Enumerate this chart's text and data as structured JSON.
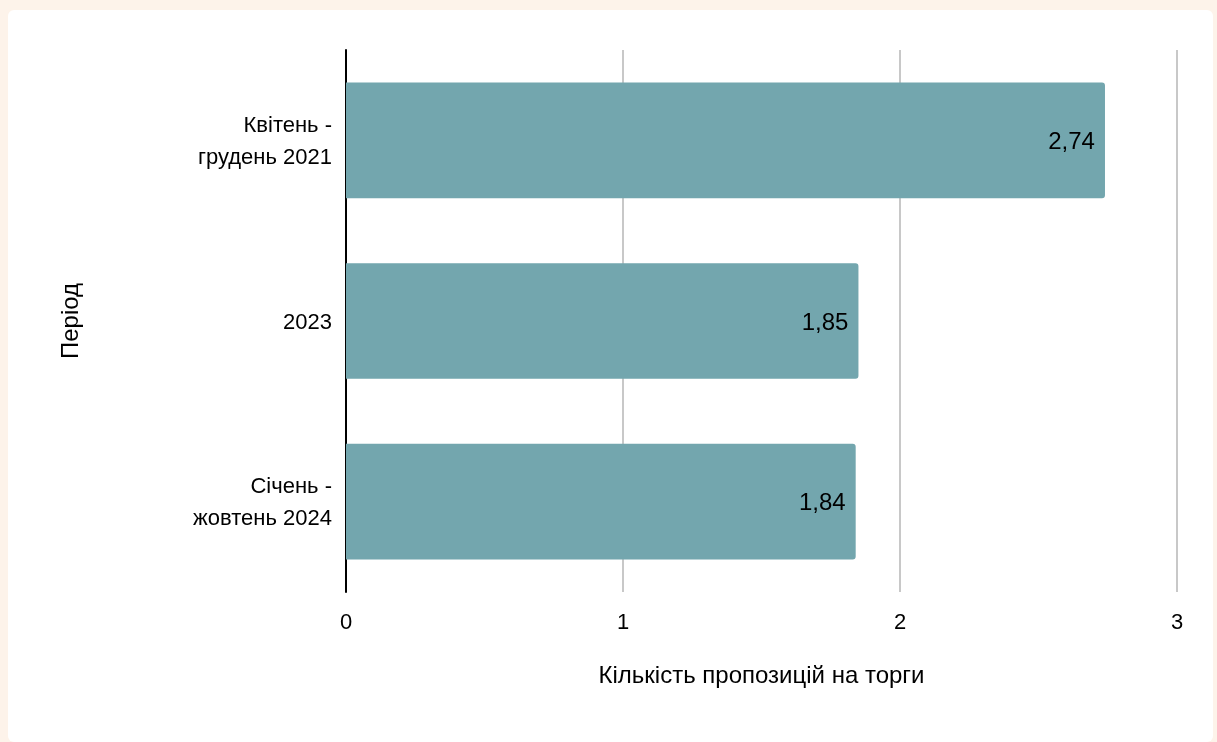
{
  "chart_data": {
    "type": "bar",
    "orientation": "horizontal",
    "xlabel": "Кількість пропозицій на торги",
    "ylabel": "Період",
    "categories": [
      "Квітень -\nгрудень 2021",
      "2023",
      "Січень -\nжовтень 2024"
    ],
    "values": [
      2.74,
      1.85,
      1.84
    ],
    "value_labels": [
      "2,74",
      "1,85",
      "1,84"
    ],
    "color": "#73a6ae",
    "xlim": [
      0,
      3
    ],
    "xticks": [
      0,
      1,
      2,
      3
    ],
    "grid": "x"
  }
}
